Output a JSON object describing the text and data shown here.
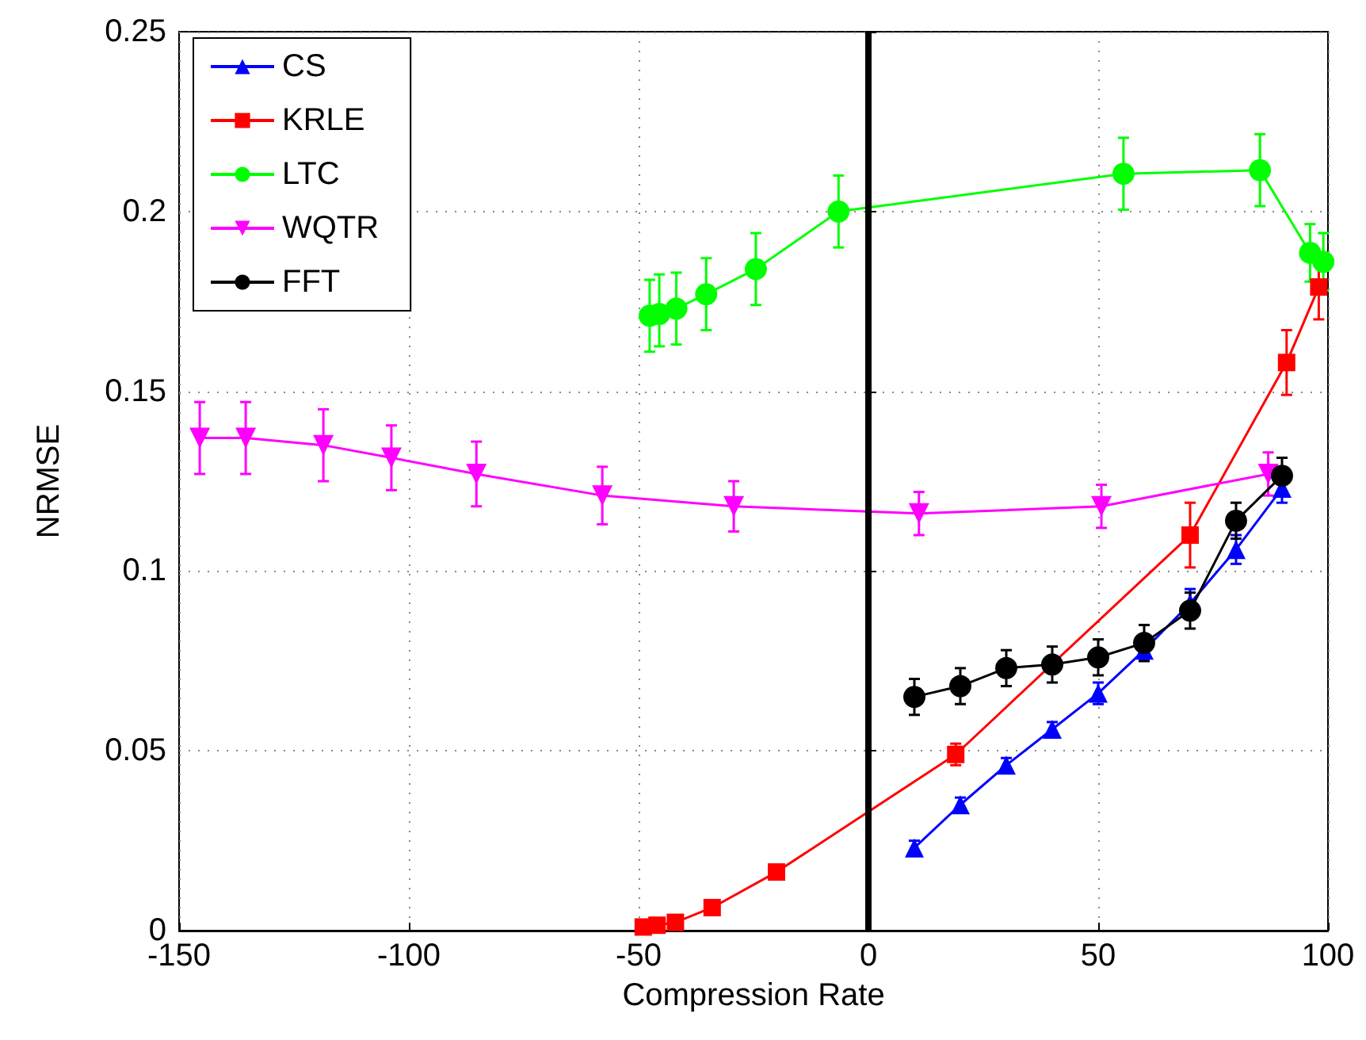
{
  "chart_data": {
    "type": "line",
    "xlabel": "Compression Rate",
    "ylabel": "NRMSE",
    "xlim": [
      -150,
      100
    ],
    "xticks": [
      -150,
      -100,
      -50,
      0,
      50,
      100
    ],
    "ylim": [
      0,
      0.25
    ],
    "yticks": [
      0,
      0.05,
      0.1,
      0.15,
      0.2,
      0.25
    ],
    "grid": true,
    "legend": "top left",
    "line_style": "solid",
    "ref_lines": [
      {
        "axis": "x",
        "value": 0,
        "color": "#000000"
      }
    ],
    "series": [
      {
        "name": "CS",
        "color": "#0000ff",
        "marker": "triangle",
        "x": [
          10,
          20,
          30,
          40,
          50,
          60,
          70,
          80,
          90
        ],
        "values": [
          0.023,
          0.035,
          0.046,
          0.056,
          0.066,
          0.078,
          0.091,
          0.106,
          0.123
        ],
        "errors": [
          0.002,
          0.002,
          0.002,
          0.002,
          0.003,
          0.003,
          0.004,
          0.004,
          0.004
        ]
      },
      {
        "name": "KRLE",
        "color": "#ff0000",
        "marker": "square",
        "x": [
          -49,
          -46,
          -42,
          -34,
          -20,
          19,
          70,
          91,
          98
        ],
        "values": [
          0.001,
          0.0015,
          0.0023,
          0.0064,
          0.0163,
          0.049,
          0.11,
          0.158,
          0.179
        ],
        "errors": [
          null,
          null,
          null,
          null,
          null,
          0.003,
          0.009,
          0.009,
          0.009
        ]
      },
      {
        "name": "LTC",
        "color": "#00ff00",
        "marker": "circle",
        "x": [
          -47.6,
          -45.5,
          -41.8,
          -35.3,
          -24.5,
          -6.5,
          55.5,
          85.2,
          96.1,
          99
        ],
        "values": [
          0.171,
          0.1715,
          0.173,
          0.177,
          0.184,
          0.2,
          0.2105,
          0.2115,
          0.1885,
          0.186
        ],
        "errors": [
          0.01,
          [
            0.1625,
            0.1825
          ],
          0.01,
          0.01,
          0.01,
          0.01,
          0.01,
          0.01,
          0.008,
          0.008
        ]
      },
      {
        "name": "WQTR",
        "color": "#ff00ff",
        "marker": "triangle-down",
        "x": [
          -145.5,
          -135.5,
          -118.6,
          -103.8,
          -85.3,
          -57.9,
          -29.3,
          11,
          50.7,
          87
        ],
        "values": [
          0.137,
          0.137,
          0.135,
          0.1315,
          0.127,
          0.121,
          0.118,
          0.116,
          0.118,
          0.127
        ],
        "errors": [
          0.01,
          0.01,
          0.01,
          0.009,
          0.009,
          0.008,
          0.007,
          0.006,
          0.006,
          0.006
        ]
      },
      {
        "name": "FFT",
        "color": "#000000",
        "marker": "circle",
        "x": [
          10,
          20,
          30,
          40,
          50,
          60,
          70,
          80,
          90
        ],
        "values": [
          0.065,
          0.068,
          0.073,
          0.074,
          0.076,
          0.08,
          0.089,
          0.114,
          0.1265
        ],
        "errors": [
          0.005,
          0.005,
          0.005,
          0.005,
          0.005,
          0.005,
          0.005,
          0.005,
          0.005
        ]
      }
    ]
  }
}
